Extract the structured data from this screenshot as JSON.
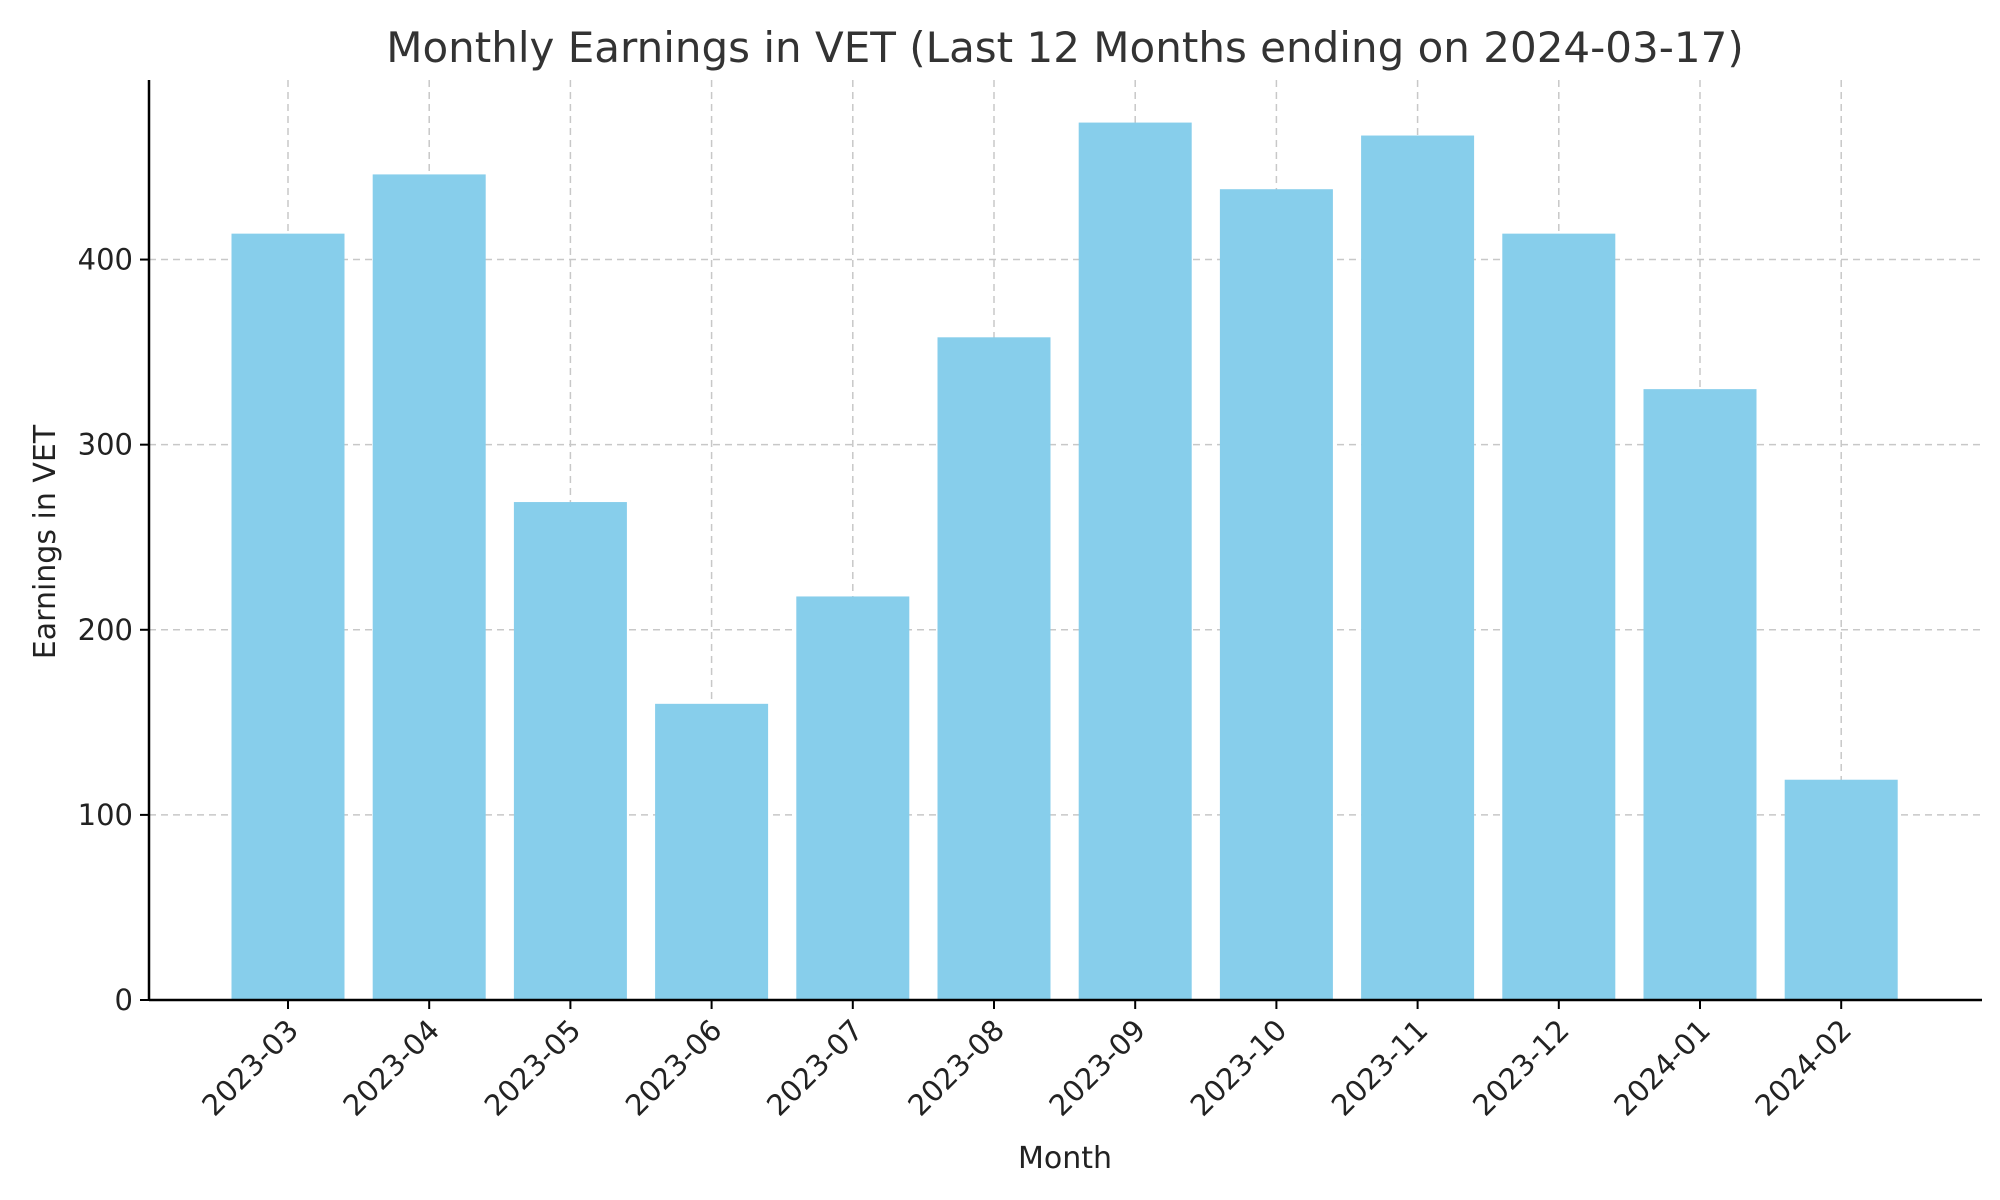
{
  "chart_data": {
    "type": "bar",
    "title": "Monthly Earnings in VET (Last 12 Months ending on 2024-03-17)",
    "xlabel": "Month",
    "ylabel": "Earnings in VET",
    "categories": [
      "2023-03",
      "2023-04",
      "2023-05",
      "2023-06",
      "2023-07",
      "2023-08",
      "2023-09",
      "2023-10",
      "2023-11",
      "2023-12",
      "2024-01",
      "2024-02"
    ],
    "values": [
      414,
      446,
      269,
      160,
      218,
      358,
      474,
      438,
      467,
      414,
      330,
      119
    ],
    "ylim": [
      0,
      497
    ],
    "yticks": [
      0,
      100,
      200,
      300,
      400
    ],
    "grid": true,
    "bar_color": "#87ceeb"
  }
}
